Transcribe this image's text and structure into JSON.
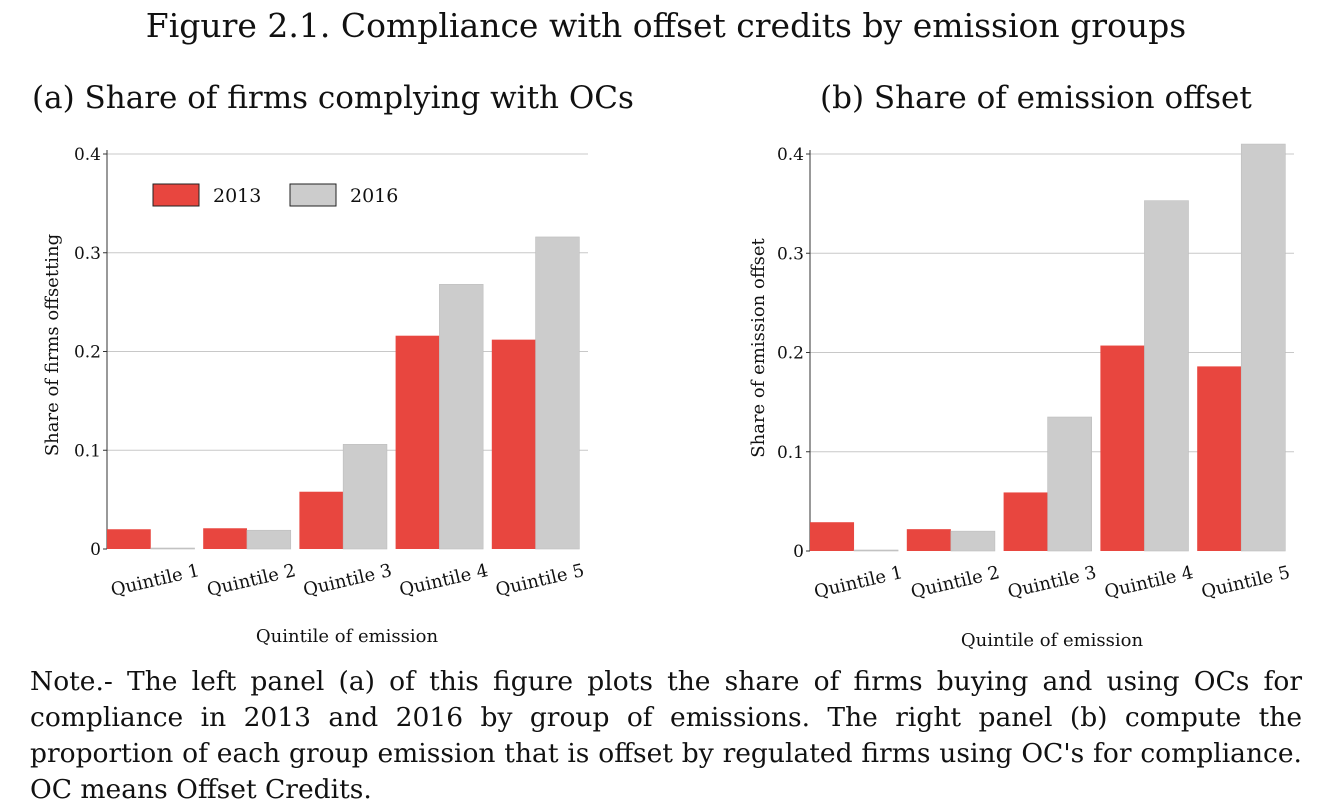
{
  "figure_title": "Figure 2.1. Compliance with offset credits by emission groups",
  "colors": {
    "s2013": "#e8463f",
    "s2016": "#cccccc",
    "grid": "#c8c8c8",
    "axis": "#333333"
  },
  "chart_data": [
    {
      "type": "bar",
      "title": "(a) Share of firms complying with OCs",
      "xlabel": "Quintile of emission",
      "ylabel": "Share of firms offsetting",
      "ylim": [
        0,
        0.4
      ],
      "yticks": [
        "0",
        "0.1",
        "0.2",
        "0.3",
        "0.4"
      ],
      "grid": true,
      "legend": "top-left",
      "categories": [
        "Quintile 1",
        "Quintile 2",
        "Quintile 3",
        "Quintile 4",
        "Quintile 5"
      ],
      "series": [
        {
          "name": "2013",
          "values": [
            0.02,
            0.021,
            0.058,
            0.216,
            0.212
          ]
        },
        {
          "name": "2016",
          "values": [
            0.001,
            0.019,
            0.106,
            0.268,
            0.316
          ]
        }
      ]
    },
    {
      "type": "bar",
      "title": "(b) Share of emission offset",
      "xlabel": "Quintile of emission",
      "ylabel": "Share of emission offset",
      "ylim": [
        0,
        0.4
      ],
      "yticks": [
        "0",
        "0.1",
        "0.2",
        "0.3",
        "0.4"
      ],
      "grid": true,
      "legend": "none",
      "categories": [
        "Quintile 1",
        "Quintile 2",
        "Quintile 3",
        "Quintile 4",
        "Quintile 5"
      ],
      "series": [
        {
          "name": "2013",
          "values": [
            0.029,
            0.022,
            0.059,
            0.207,
            0.186
          ]
        },
        {
          "name": "2016",
          "values": [
            0.001,
            0.02,
            0.135,
            0.353,
            0.41
          ]
        }
      ]
    }
  ],
  "note": "Note.- The left panel (a) of this figure plots the share of firms buying and using OCs for compliance in 2013 and 2016 by group of emissions. The right panel (b) compute the proportion of each group emission that is offset by regulated firms using OC's for compliance. OC means Offset Credits."
}
